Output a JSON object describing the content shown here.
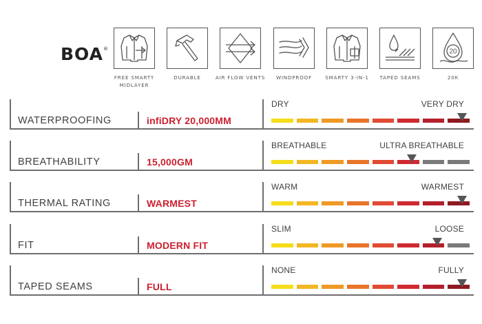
{
  "brand": {
    "logo": "BOA",
    "mark": "®"
  },
  "features": [
    {
      "icon": "jacket-midlayer-icon",
      "label": "FREE SMARTY MIDLAYER"
    },
    {
      "icon": "hammer-icon",
      "label": "DURABLE"
    },
    {
      "icon": "air-flow-vents-icon",
      "label": "AIR FLOW VENTS"
    },
    {
      "icon": "wind-icon",
      "label": "WINDPROOF"
    },
    {
      "icon": "jacket-3-in-1-icon",
      "label": "SMARTY 3-IN-1"
    },
    {
      "icon": "taped-seams-icon",
      "label": "TAPED SEAMS"
    },
    {
      "icon": "drop-20k-icon",
      "label": "20K",
      "badge": "20"
    }
  ],
  "ratings": [
    {
      "name": "WATERPROOFING",
      "value": "infiDRY 20,000MM",
      "low": "DRY",
      "high": "VERY DRY",
      "level": 8
    },
    {
      "name": "BREATHABILITY",
      "value": "15,000GM",
      "low": "BREATHABLE",
      "high": "ULTRA BREATHABLE",
      "level": 6
    },
    {
      "name": "THERMAL RATING",
      "value": "WARMEST",
      "low": "WARM",
      "high": "WARMEST",
      "level": 8
    },
    {
      "name": "FIT",
      "value": "MODERN FIT",
      "low": "SLIM",
      "high": "LOOSE",
      "level": 7
    },
    {
      "name": "TAPED SEAMS",
      "value": "FULL",
      "low": "NONE",
      "high": "FULLY",
      "level": 8
    }
  ],
  "scale": {
    "segments": 8,
    "colors": [
      "#f5dd1c",
      "#f3b724",
      "#ee9a26",
      "#e9752a",
      "#e14a33",
      "#cf2a31",
      "#b41f2b",
      "#8e1a21"
    ],
    "inactive_color": "#7a7a7a",
    "marker_color": "#555555"
  }
}
